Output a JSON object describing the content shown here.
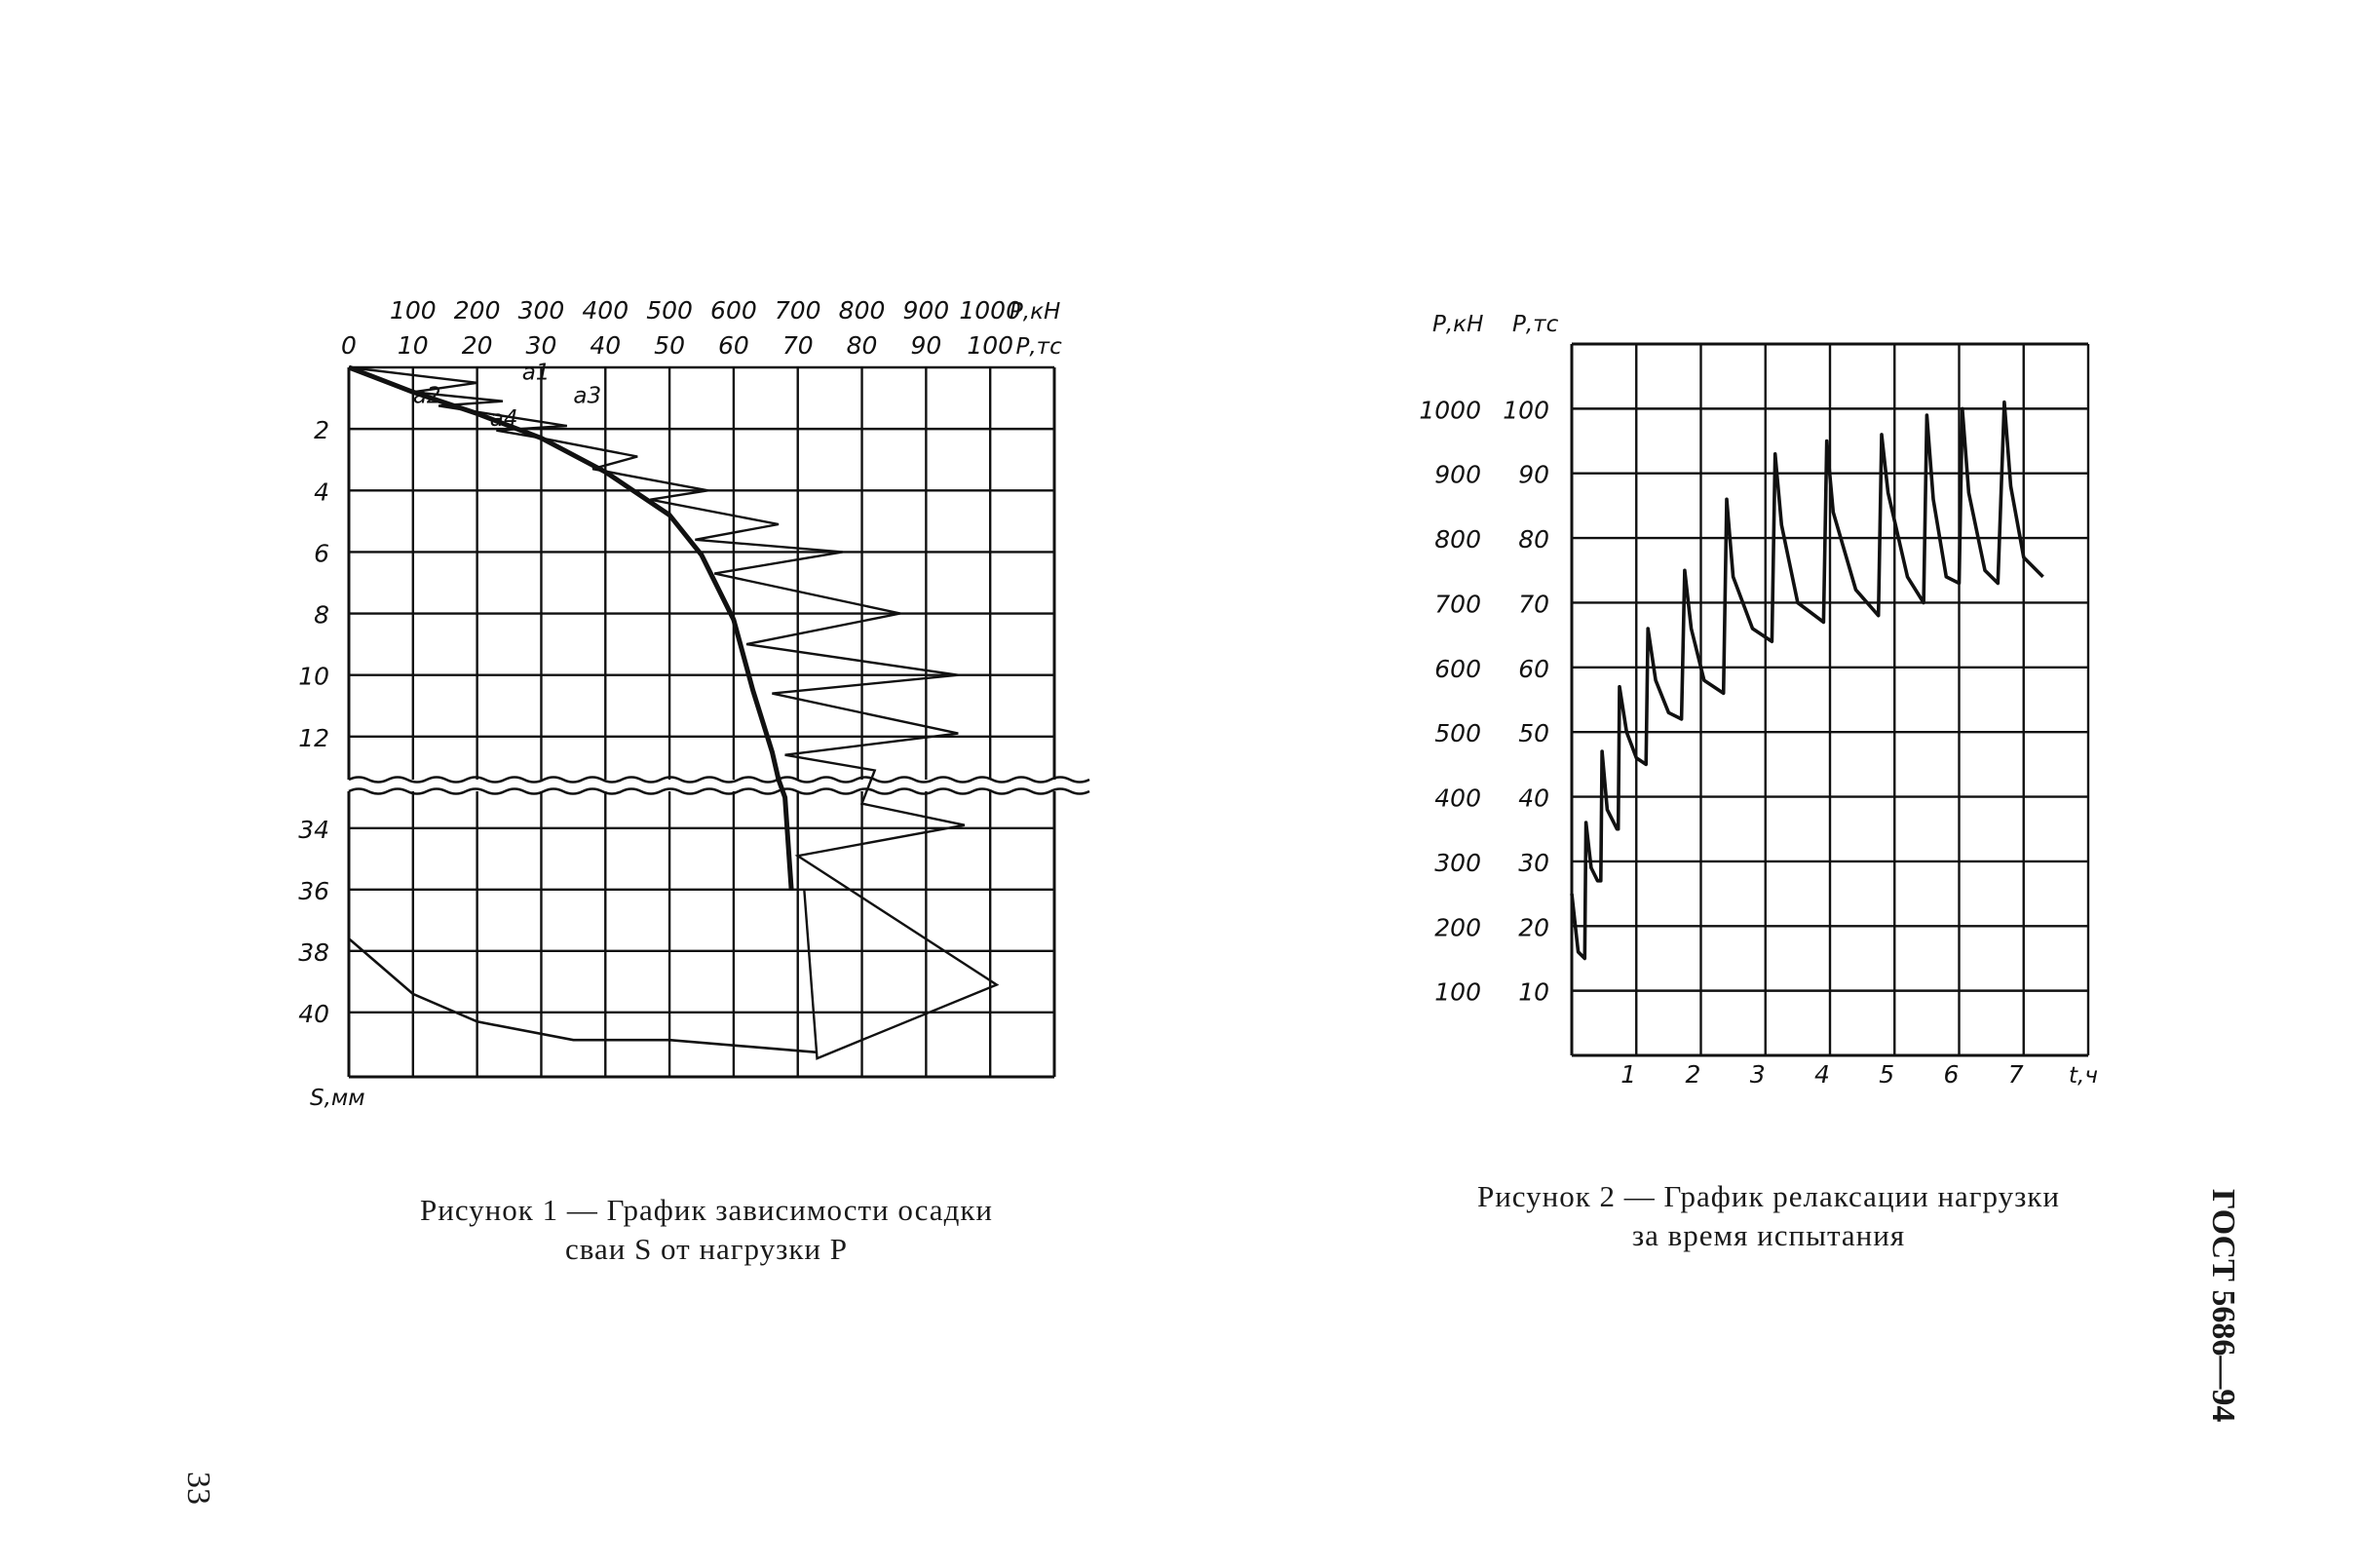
{
  "page": {
    "number": "33",
    "standard": "ГОСТ 5686—94"
  },
  "figure1": {
    "caption_line1": "Рисунок 1 — График зависимости осадки",
    "caption_line2": "сваи S от нагрузки P"
  },
  "figure2": {
    "caption_line1": "Рисунок 2 — График релаксации нагрузки",
    "caption_line2": "за время испытания"
  },
  "chart_data": [
    {
      "type": "line",
      "top_axis_kn": {
        "ticks": [
          "100",
          "200",
          "300",
          "400",
          "500",
          "600",
          "700",
          "800",
          "900",
          "1000"
        ],
        "unit": "Р,кН"
      },
      "top_axis_tc": {
        "ticks": [
          "0",
          "10",
          "20",
          "30",
          "40",
          "50",
          "60",
          "70",
          "80",
          "90",
          "100"
        ],
        "unit": "Р,тс"
      },
      "y_axis": {
        "ticks": [
          "2",
          "4",
          "6",
          "8",
          "10",
          "12",
          "34",
          "36",
          "38",
          "40"
        ],
        "unit": "S,мм",
        "upper_range": [
          0,
          13.4
        ],
        "lower_range": [
          32.8,
          42.1
        ]
      },
      "xlim_tc": [
        0,
        110
      ],
      "point_labels": [
        "a1",
        "a2",
        "a3",
        "a4"
      ],
      "envelope": {
        "name": "",
        "points": [
          [
            0,
            0
          ],
          [
            10,
            0.8
          ],
          [
            20,
            1.5
          ],
          [
            30,
            2.3
          ],
          [
            40,
            3.4
          ],
          [
            50,
            4.8
          ],
          [
            55,
            6.1
          ],
          [
            60,
            8.2
          ],
          [
            63,
            10.5
          ],
          [
            66,
            12.5
          ],
          [
            67,
            13.4
          ],
          [
            68,
            33
          ],
          [
            69,
            36
          ]
        ]
      },
      "zigzag": {
        "name": "",
        "points": [
          [
            0,
            0
          ],
          [
            20,
            0.5
          ],
          [
            10,
            0.8
          ],
          [
            24,
            1.1
          ],
          [
            14,
            1.25
          ],
          [
            34,
            1.9
          ],
          [
            23,
            2.05
          ],
          [
            30,
            2.3
          ],
          [
            45,
            2.9
          ],
          [
            38,
            3.3
          ],
          [
            56,
            4.0
          ],
          [
            47,
            4.3
          ],
          [
            67,
            5.1
          ],
          [
            54,
            5.6
          ],
          [
            77,
            6.0
          ],
          [
            57,
            6.7
          ],
          [
            86,
            8.0
          ],
          [
            62,
            9.0
          ],
          [
            95,
            10.0
          ],
          [
            66,
            10.6
          ],
          [
            95,
            11.9
          ],
          [
            68,
            12.6
          ],
          [
            82,
            13.1
          ],
          [
            80,
            33.2
          ],
          [
            96,
            33.9
          ],
          [
            70,
            34.9
          ],
          [
            101,
            39.1
          ],
          [
            73,
            41.5
          ],
          [
            71,
            36
          ]
        ]
      },
      "unload_curve": {
        "name": "",
        "points": [
          [
            0,
            37.6
          ],
          [
            10,
            39.4
          ],
          [
            20,
            40.3
          ],
          [
            35,
            40.9
          ],
          [
            50,
            40.9
          ],
          [
            73,
            41.3
          ]
        ]
      }
    },
    {
      "type": "line",
      "y_axis_kn": {
        "ticks": [
          "1000",
          "900",
          "800",
          "700",
          "600",
          "500",
          "400",
          "300",
          "200",
          "100"
        ],
        "unit": "Р,кН"
      },
      "y_axis_tc": {
        "ticks": [
          "100",
          "90",
          "80",
          "70",
          "60",
          "50",
          "40",
          "30",
          "20",
          "10"
        ],
        "unit": "Р,тс"
      },
      "x_axis": {
        "ticks": [
          "1",
          "2",
          "3",
          "4",
          "5",
          "6",
          "7"
        ],
        "unit": "t,ч"
      },
      "xlim": [
        0,
        8
      ],
      "ylim": [
        0,
        110
      ],
      "relaxation": {
        "name": "",
        "points": [
          [
            0,
            25
          ],
          [
            0.1,
            16
          ],
          [
            0.2,
            15
          ],
          [
            0.22,
            36
          ],
          [
            0.3,
            29
          ],
          [
            0.4,
            27
          ],
          [
            0.45,
            27
          ],
          [
            0.47,
            47
          ],
          [
            0.55,
            38
          ],
          [
            0.7,
            35
          ],
          [
            0.72,
            35
          ],
          [
            0.74,
            57
          ],
          [
            0.85,
            50
          ],
          [
            1.0,
            46
          ],
          [
            1.15,
            45
          ],
          [
            1.18,
            66
          ],
          [
            1.3,
            58
          ],
          [
            1.5,
            53
          ],
          [
            1.7,
            52
          ],
          [
            1.75,
            75
          ],
          [
            1.85,
            66
          ],
          [
            2.05,
            58
          ],
          [
            2.35,
            56
          ],
          [
            2.4,
            86
          ],
          [
            2.5,
            74
          ],
          [
            2.8,
            66
          ],
          [
            3.1,
            64
          ],
          [
            3.15,
            93
          ],
          [
            3.25,
            82
          ],
          [
            3.5,
            70
          ],
          [
            3.9,
            67
          ],
          [
            3.95,
            95
          ],
          [
            4.05,
            84
          ],
          [
            4.4,
            72
          ],
          [
            4.75,
            68
          ],
          [
            4.8,
            96
          ],
          [
            4.9,
            87
          ],
          [
            5.2,
            74
          ],
          [
            5.45,
            70
          ],
          [
            5.5,
            99
          ],
          [
            5.6,
            86
          ],
          [
            5.8,
            74
          ],
          [
            6.0,
            73
          ],
          [
            6.05,
            100
          ],
          [
            6.15,
            87
          ],
          [
            6.4,
            75
          ],
          [
            6.6,
            73
          ],
          [
            6.7,
            101
          ],
          [
            6.8,
            88
          ],
          [
            7.0,
            77
          ],
          [
            7.3,
            74
          ]
        ]
      }
    }
  ]
}
